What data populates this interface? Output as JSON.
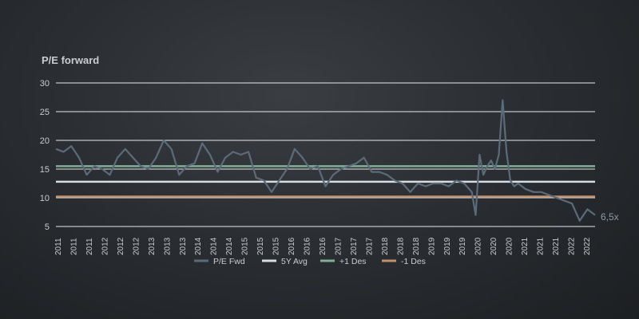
{
  "chart_data": {
    "type": "line",
    "ylabel": "P/E forward",
    "ylim": [
      5,
      30
    ],
    "yticks": [
      5,
      10,
      15,
      20,
      25,
      30
    ],
    "grid": true,
    "xlim": [
      "2011-01",
      "2022-09"
    ],
    "xticks": [
      "2011",
      "2011",
      "2011",
      "2012",
      "2012",
      "2012",
      "2013",
      "2013",
      "2013",
      "2014",
      "2014",
      "2014",
      "2015",
      "2015",
      "2015",
      "2016",
      "2016",
      "2016",
      "2017",
      "2017",
      "2017",
      "2018",
      "2018",
      "2018",
      "2019",
      "2019",
      "2019",
      "2020",
      "2020",
      "2020",
      "2021",
      "2021",
      "2021",
      "2022",
      "2022"
    ],
    "legend_placement": "bottom",
    "annotation": "6,5x",
    "series": [
      {
        "name": "P/E Fwd",
        "color": "#5b6b7a",
        "x": [
          "2011-01",
          "2011-03",
          "2011-05",
          "2011-07",
          "2011-09",
          "2011-11",
          "2012-01",
          "2012-03",
          "2012-05",
          "2012-07",
          "2012-09",
          "2012-11",
          "2013-01",
          "2013-03",
          "2013-05",
          "2013-07",
          "2013-09",
          "2013-11",
          "2014-01",
          "2014-03",
          "2014-05",
          "2014-07",
          "2014-09",
          "2014-11",
          "2015-01",
          "2015-03",
          "2015-05",
          "2015-07",
          "2015-09",
          "2015-11",
          "2016-01",
          "2016-03",
          "2016-05",
          "2016-07",
          "2016-09",
          "2016-11",
          "2017-01",
          "2017-03",
          "2017-05",
          "2017-07",
          "2017-09",
          "2017-11",
          "2018-01",
          "2018-03",
          "2018-05",
          "2018-07",
          "2018-09",
          "2018-11",
          "2019-01",
          "2019-03",
          "2019-05",
          "2019-07",
          "2019-09",
          "2019-11",
          "2020-01",
          "2020-02",
          "2020-03",
          "2020-04",
          "2020-05",
          "2020-06",
          "2020-07",
          "2020-08",
          "2020-09",
          "2020-10",
          "2020-11",
          "2020-12",
          "2021-01",
          "2021-03",
          "2021-05",
          "2021-07",
          "2021-09",
          "2021-11",
          "2022-01",
          "2022-03",
          "2022-05",
          "2022-07",
          "2022-09"
        ],
        "values": [
          18.5,
          18.0,
          19.0,
          17.0,
          14.0,
          15.5,
          15.0,
          14.0,
          17.0,
          18.5,
          17.0,
          15.5,
          15.0,
          17.0,
          20.0,
          18.5,
          14.0,
          15.5,
          16.0,
          19.5,
          17.5,
          14.5,
          17.0,
          18.0,
          17.5,
          18.0,
          13.5,
          13.0,
          11.0,
          13.0,
          15.0,
          18.5,
          17.0,
          15.0,
          15.5,
          12.0,
          14.0,
          15.0,
          15.5,
          16.0,
          17.0,
          14.5,
          14.5,
          14.0,
          13.0,
          12.5,
          11.0,
          12.5,
          12.0,
          12.5,
          12.5,
          12.0,
          13.0,
          12.5,
          11.0,
          7.0,
          17.5,
          14.0,
          15.5,
          16.5,
          15.0,
          17.5,
          27.0,
          18.0,
          13.0,
          12.0,
          12.5,
          11.5,
          11.0,
          11.0,
          10.5,
          10.0,
          9.5,
          9.0,
          6.0,
          8.0,
          7.0
        ]
      },
      {
        "name": "5Y Avg",
        "color": "#d8dde2",
        "value": 12.8
      },
      {
        "name": "+1 Des",
        "color": "#7faf94",
        "value": 15.5
      },
      {
        "name": "-1 Des",
        "color": "#c0906f",
        "value": 10.2
      }
    ]
  }
}
